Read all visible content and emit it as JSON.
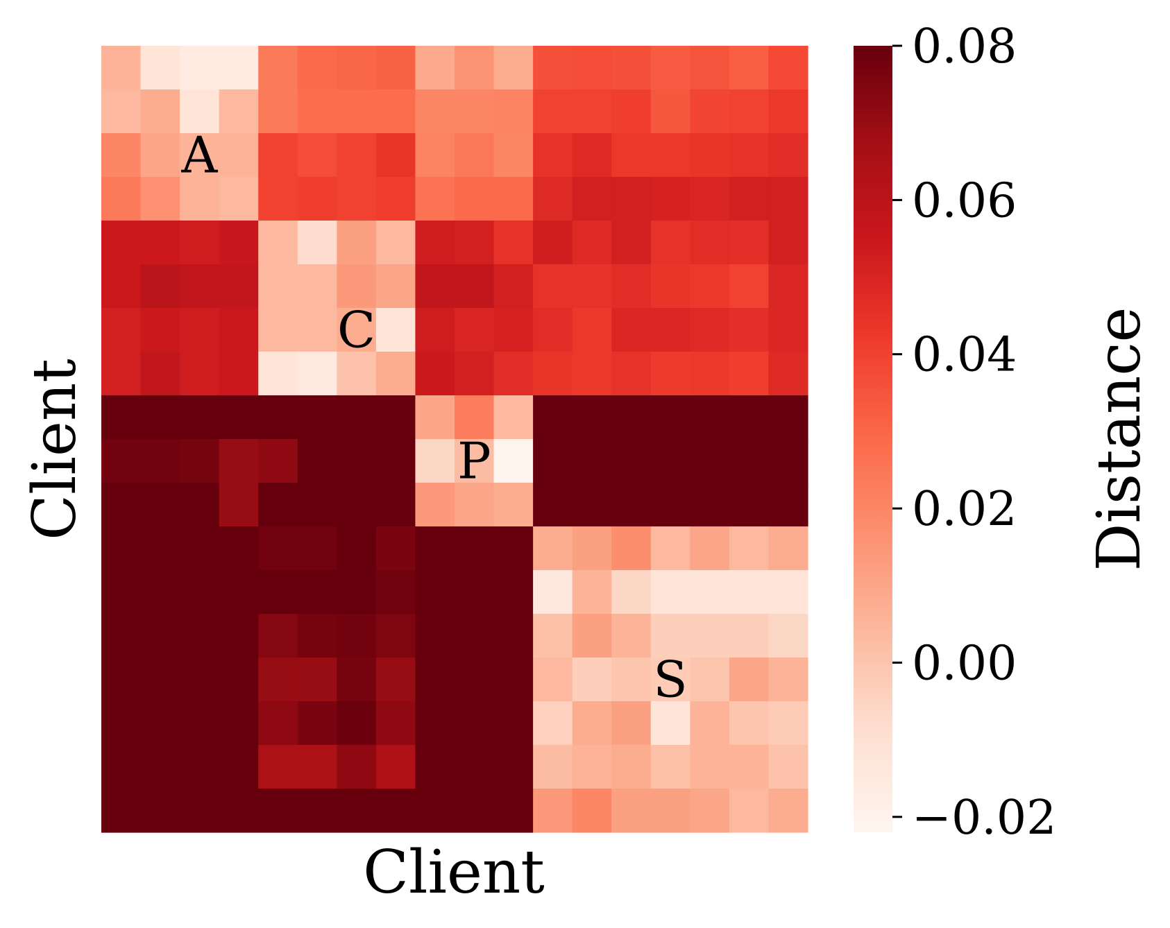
{
  "chart_data": {
    "type": "heatmap",
    "xlabel": "Client",
    "ylabel": "Client",
    "colorbar": {
      "label": "Distance",
      "range": [
        -0.022,
        0.08
      ],
      "ticks": [
        {
          "value": 0.08,
          "label": "0.08"
        },
        {
          "value": 0.06,
          "label": "0.06"
        },
        {
          "value": 0.04,
          "label": "0.04"
        },
        {
          "value": 0.02,
          "label": "0.02"
        },
        {
          "value": 0.0,
          "label": "0.00"
        },
        {
          "value": -0.02,
          "label": "−0.02"
        }
      ],
      "colormap": "Reds"
    },
    "block_labels": [
      {
        "text": "A",
        "row": 2,
        "col": 2
      },
      {
        "text": "C",
        "row": 6,
        "col": 6
      },
      {
        "text": "P",
        "row": 9,
        "col": 9
      },
      {
        "text": "S",
        "row": 14,
        "col": 14
      }
    ],
    "matrix": [
      [
        0.006,
        -0.012,
        -0.016,
        -0.016,
        0.024,
        0.029,
        0.03,
        0.031,
        0.009,
        0.016,
        0.008,
        0.036,
        0.037,
        0.036,
        0.033,
        0.035,
        0.032,
        0.038
      ],
      [
        0.004,
        0.008,
        -0.012,
        0.004,
        0.024,
        0.028,
        0.028,
        0.028,
        0.02,
        0.02,
        0.021,
        0.04,
        0.04,
        0.041,
        0.034,
        0.039,
        0.04,
        0.043
      ],
      [
        0.02,
        0.01,
        0.006,
        0.006,
        0.04,
        0.037,
        0.04,
        0.044,
        0.021,
        0.025,
        0.02,
        0.045,
        0.048,
        0.043,
        0.043,
        0.044,
        0.045,
        0.047
      ],
      [
        0.024,
        0.017,
        0.006,
        0.004,
        0.04,
        0.041,
        0.04,
        0.041,
        0.026,
        0.029,
        0.029,
        0.048,
        0.052,
        0.052,
        0.051,
        0.05,
        0.052,
        0.052
      ],
      [
        0.055,
        0.055,
        0.053,
        0.056,
        0.004,
        -0.008,
        0.012,
        0.004,
        0.053,
        0.052,
        0.045,
        0.053,
        0.048,
        0.052,
        0.045,
        0.047,
        0.046,
        0.052
      ],
      [
        0.055,
        0.06,
        0.058,
        0.058,
        0.004,
        0.004,
        0.014,
        0.01,
        0.058,
        0.058,
        0.052,
        0.045,
        0.045,
        0.047,
        0.044,
        0.043,
        0.04,
        0.049
      ],
      [
        0.052,
        0.055,
        0.053,
        0.055,
        0.004,
        0.004,
        0.008,
        -0.012,
        0.053,
        0.05,
        0.051,
        0.047,
        0.043,
        0.049,
        0.049,
        0.048,
        0.046,
        0.049
      ],
      [
        0.052,
        0.058,
        0.053,
        0.055,
        -0.012,
        -0.015,
        0.001,
        0.008,
        0.055,
        0.052,
        0.047,
        0.044,
        0.043,
        0.045,
        0.042,
        0.043,
        0.041,
        0.048
      ],
      [
        0.08,
        0.08,
        0.08,
        0.08,
        0.08,
        0.08,
        0.08,
        0.08,
        0.01,
        0.023,
        0.004,
        0.08,
        0.08,
        0.08,
        0.08,
        0.08,
        0.08,
        0.08
      ],
      [
        0.078,
        0.078,
        0.077,
        0.07,
        0.072,
        0.08,
        0.08,
        0.08,
        -0.006,
        0.003,
        -0.021,
        0.08,
        0.08,
        0.08,
        0.08,
        0.08,
        0.08,
        0.08
      ],
      [
        0.08,
        0.08,
        0.08,
        0.07,
        0.08,
        0.08,
        0.08,
        0.08,
        0.014,
        0.01,
        0.008,
        0.08,
        0.08,
        0.08,
        0.08,
        0.08,
        0.08,
        0.08
      ],
      [
        0.08,
        0.08,
        0.08,
        0.08,
        0.078,
        0.078,
        0.08,
        0.076,
        0.08,
        0.08,
        0.08,
        0.008,
        0.012,
        0.018,
        0.004,
        0.01,
        0.004,
        0.008
      ],
      [
        0.08,
        0.08,
        0.08,
        0.08,
        0.08,
        0.08,
        0.08,
        0.078,
        0.08,
        0.08,
        0.08,
        -0.014,
        0.006,
        -0.006,
        -0.012,
        -0.012,
        -0.012,
        -0.012
      ],
      [
        0.08,
        0.08,
        0.08,
        0.08,
        0.074,
        0.077,
        0.078,
        0.075,
        0.08,
        0.08,
        0.08,
        0.002,
        0.012,
        0.006,
        -0.003,
        -0.003,
        -0.003,
        -0.006
      ],
      [
        0.08,
        0.08,
        0.08,
        0.08,
        0.07,
        0.07,
        0.077,
        0.07,
        0.08,
        0.08,
        0.08,
        0.004,
        -0.003,
        0.0,
        -0.002,
        0.0,
        0.01,
        0.006
      ],
      [
        0.08,
        0.08,
        0.08,
        0.08,
        0.072,
        0.076,
        0.079,
        0.072,
        0.08,
        0.08,
        0.08,
        -0.004,
        0.008,
        0.012,
        -0.012,
        0.006,
        0.0,
        -0.002
      ],
      [
        0.08,
        0.08,
        0.08,
        0.08,
        0.065,
        0.065,
        0.072,
        0.064,
        0.08,
        0.08,
        0.08,
        0.003,
        0.006,
        0.008,
        0.002,
        0.006,
        0.006,
        0.001
      ],
      [
        0.08,
        0.08,
        0.08,
        0.08,
        0.08,
        0.08,
        0.08,
        0.08,
        0.08,
        0.08,
        0.08,
        0.014,
        0.02,
        0.012,
        0.012,
        0.01,
        0.004,
        0.008
      ]
    ]
  }
}
